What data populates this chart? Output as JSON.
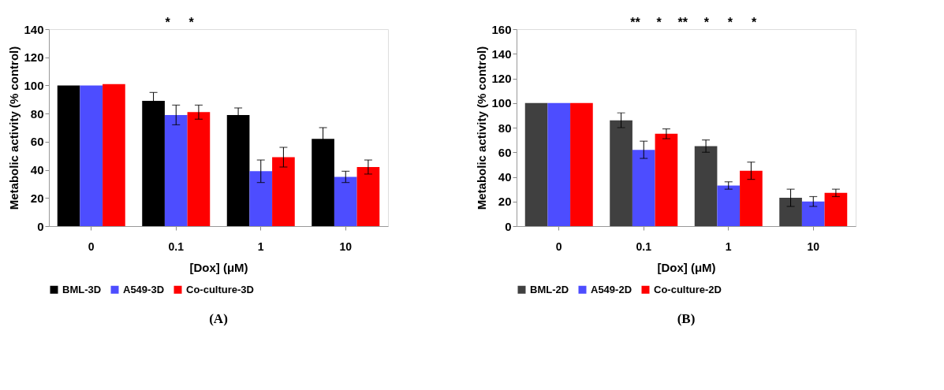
{
  "chart_data": [
    {
      "type": "bar",
      "title": "(A)",
      "xlabel": "[Dox] (μM)",
      "ylabel": "Metabolic activity (% control)",
      "categories": [
        "0",
        "0.1",
        "1",
        "10"
      ],
      "series": [
        {
          "name": "BML-3D",
          "color": "#000000",
          "values": [
            100,
            89,
            79,
            62
          ],
          "errors": [
            null,
            6,
            5,
            8
          ]
        },
        {
          "name": "A549-3D",
          "color": "#4d4dff",
          "values": [
            100,
            79,
            39,
            35
          ],
          "errors": [
            null,
            7,
            8,
            4
          ]
        },
        {
          "name": "Co-culture-3D",
          "color": "#ff0000",
          "values": [
            101,
            81,
            49,
            42
          ],
          "errors": [
            null,
            5,
            7,
            5
          ]
        }
      ],
      "ylim": [
        0,
        140
      ],
      "yticks": [
        0,
        20,
        40,
        60,
        80,
        100,
        120,
        140
      ],
      "grid": false,
      "legend": "bottom",
      "annotations": [
        "*",
        "*"
      ]
    },
    {
      "type": "bar",
      "title": "(B)",
      "xlabel": "[Dox] (μM)",
      "ylabel": "Metabolic activity (% control)",
      "categories": [
        "0",
        "0.1",
        "1",
        "10"
      ],
      "series": [
        {
          "name": "BML-2D",
          "color": "#404040",
          "values": [
            100,
            86,
            65,
            23
          ],
          "errors": [
            null,
            6,
            5,
            7
          ]
        },
        {
          "name": "A549-2D",
          "color": "#4d4dff",
          "values": [
            100,
            62,
            33,
            20
          ],
          "errors": [
            null,
            7,
            3,
            4
          ]
        },
        {
          "name": "Co-culture-2D",
          "color": "#ff0000",
          "values": [
            100,
            75,
            45,
            27
          ],
          "errors": [
            null,
            4,
            7,
            3
          ]
        }
      ],
      "ylim": [
        0,
        160
      ],
      "yticks": [
        0,
        20,
        40,
        60,
        80,
        100,
        120,
        140,
        160
      ],
      "grid": false,
      "legend": "bottom",
      "annotations": [
        "**",
        "*",
        "**",
        "*",
        "*",
        "*"
      ]
    }
  ]
}
